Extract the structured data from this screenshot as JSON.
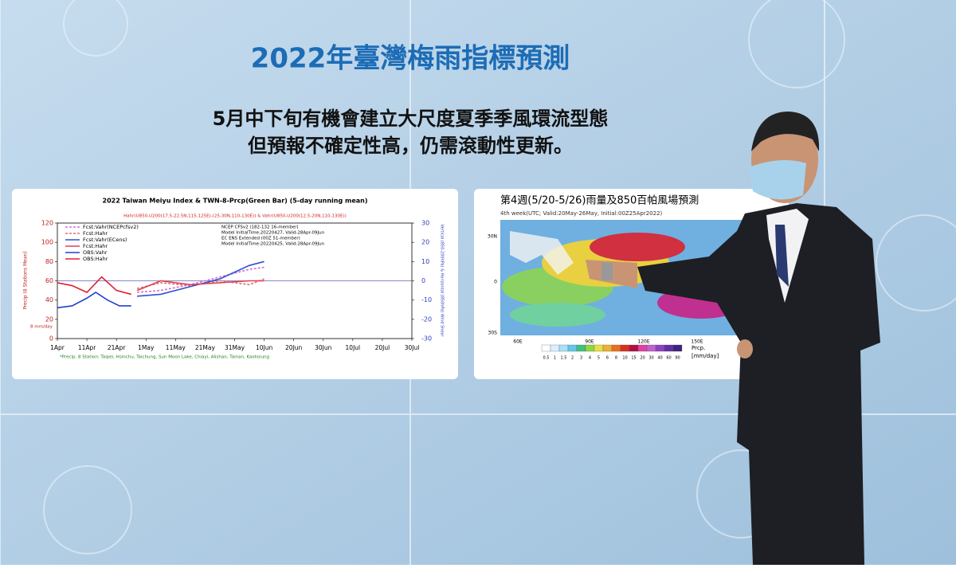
{
  "header": {
    "title": "2022年臺灣梅雨指標預測",
    "subtitle_lines": [
      "5月中下旬有機會建立大尺度夏季季風環流型態",
      "但預報不確定性高，仍需滾動性更新。"
    ]
  },
  "chart_data": {
    "type": "line",
    "title": "2022 Taiwan Meiyu Index & TWN-8-Prcp(Green Bar) (5-day running mean)",
    "subtitle": "Hahr(U850-U200(17.5-22.5N,115-125E)-(25-30N,110-130E)) & Vahr(U850-U200(12.5-20N,110-130E))",
    "y_label": "Precip (8 Stations Mean)",
    "y2_label": "Vertical (850-200hPa) & Horizontal (850hPa) Wind Shear",
    "threshold_label": "8 mm/day",
    "footnote": "*Precip. 8 Station: Taipei, Hsinchu, Taichung, Sun Moon Lake, Chiayi, Alishan, Tainan, Kaohsiung",
    "model_notes": [
      "NCEP CFSv2 (182-132 16-member)",
      "Model InitialTime:20220427, Valid:28Apr-09Jun",
      "EC ENS Extended (00Z 51-member)",
      "Model InitialTime:20220425, Valid:28Apr-09Jun"
    ],
    "xlim": [
      0,
      120
    ],
    "xticks": [
      {
        "value": 0,
        "label": "1Apr"
      },
      {
        "value": 10,
        "label": "11Apr"
      },
      {
        "value": 20,
        "label": "21Apr"
      },
      {
        "value": 30,
        "label": "1May"
      },
      {
        "value": 40,
        "label": "11May"
      },
      {
        "value": 50,
        "label": "21May"
      },
      {
        "value": 60,
        "label": "31May"
      },
      {
        "value": 70,
        "label": "10Jun"
      },
      {
        "value": 80,
        "label": "20Jun"
      },
      {
        "value": 90,
        "label": "30Jun"
      },
      {
        "value": 100,
        "label": "10Jul"
      },
      {
        "value": 110,
        "label": "20Jul"
      },
      {
        "value": 120,
        "label": "30Jul"
      }
    ],
    "ylim": [
      0,
      120
    ],
    "yticks": [
      0,
      20,
      40,
      60,
      80,
      100,
      120
    ],
    "y2lim": [
      -30,
      30
    ],
    "y2ticks": [
      -30,
      -20,
      -10,
      0,
      10,
      20,
      30
    ],
    "series": [
      {
        "name": "Fcst:Vahr(NCEPcfsv2)",
        "color": "#d070d0",
        "dash": true,
        "axis": "y2",
        "x": [
          27,
          35,
          45,
          55,
          65,
          70
        ],
        "values": [
          -6,
          -5,
          -2,
          2,
          6,
          7
        ]
      },
      {
        "name": "Fcst:Hahr",
        "color": "#e07070",
        "dash": true,
        "x": [
          27,
          35,
          45,
          55,
          65,
          70
        ],
        "values": [
          52,
          58,
          55,
          60,
          56,
          62
        ]
      },
      {
        "name": "Fcst:Vahr(ECens)",
        "color": "#3050d0",
        "axis": "y2",
        "x": [
          27,
          35,
          45,
          55,
          65,
          70
        ],
        "values": [
          -8,
          -7,
          -3,
          1,
          8,
          10
        ]
      },
      {
        "name": "Fcst:Hahr",
        "color": "#e04050",
        "x": [
          27,
          35,
          45,
          55,
          65,
          70
        ],
        "values": [
          50,
          60,
          56,
          58,
          60,
          60
        ]
      },
      {
        "name": "OBS:Vahr",
        "color": "#2040d0",
        "axis": "y2",
        "x": [
          0,
          5,
          10,
          13,
          17,
          21,
          25
        ],
        "values": [
          -14,
          -13,
          -9,
          -6,
          -10,
          -13,
          -13
        ]
      },
      {
        "name": "OBS:Hahr",
        "color": "#e02030",
        "x": [
          0,
          5,
          10,
          15,
          20,
          25
        ],
        "values": [
          58,
          55,
          48,
          64,
          50,
          46
        ]
      }
    ]
  },
  "map_panel": {
    "title": "第4週(5/20-5/26)雨量及850百帕風場預測",
    "subtitle": "4th week(UTC; Valid:20May-26May, Initial:00Z25Apr2022)",
    "lat_labels": [
      "30N",
      "0",
      "30S"
    ],
    "lon_labels": [
      "60E",
      "90E",
      "120E",
      "150E"
    ],
    "colorbar_labels": [
      "0.5",
      "1",
      "1.5",
      "2",
      "3",
      "4",
      "5",
      "6",
      "8",
      "10",
      "15",
      "20",
      "30",
      "40",
      "60",
      "90"
    ],
    "colorbar_title": "Prcp.",
    "colorbar_unit": "[mm/day]"
  }
}
